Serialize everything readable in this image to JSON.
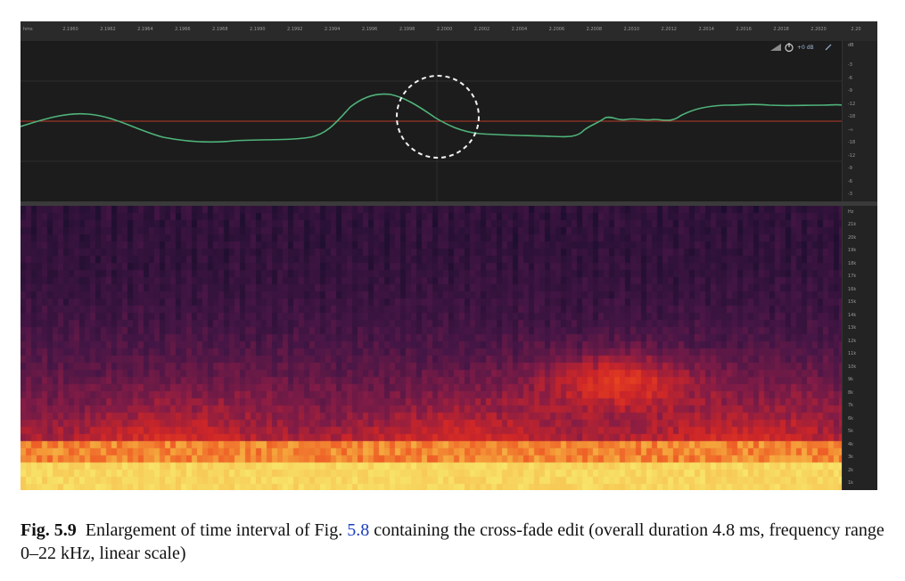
{
  "figure": {
    "ruler": {
      "unit": "hms",
      "ticks": [
        "2.1960",
        "2.1962",
        "2.1964",
        "2.1966",
        "2.1968",
        "2.1990",
        "2.1992",
        "2.1994",
        "2.1996",
        "2.1998",
        "2.2000",
        "2.2002",
        "2.2004",
        "2.2006",
        "2.2008",
        "2.2010",
        "2.2012",
        "2.2014",
        "2.2016",
        "2.2018",
        "2.2020",
        "2.20"
      ]
    },
    "controls": {
      "gain_label": "+0 dB",
      "db_label": "dB"
    },
    "db_scale": [
      "-3",
      "-6",
      "-9",
      "-12",
      "-18",
      "-∞",
      "-18",
      "-12",
      "-9",
      "-6",
      "-3"
    ],
    "hz_scale": [
      "Hz",
      "21k",
      "20k",
      "19k",
      "18k",
      "17k",
      "16k",
      "15k",
      "14k",
      "13k",
      "12k",
      "11k",
      "10k",
      "9k",
      "8k",
      "7k",
      "6k",
      "5k",
      "4k",
      "3k",
      "2k",
      "1k"
    ],
    "colors": {
      "waveform": "#4fb37a",
      "zero_line": "#b83a2a",
      "highlight_circle": "#f2f2f2",
      "spectrogram_low": "#1f0f33",
      "spectrogram_mid": "#d92a1e",
      "spectrogram_high": "#f5e85a"
    }
  },
  "caption": {
    "label": "Fig. 5.9",
    "text_before_ref": "Enlargement of time interval of Fig.",
    "ref": "5.8",
    "text_after_ref": "containing the cross-fade edit (overall duration 4.8 ms, frequency range 0–22 kHz, linear scale)"
  }
}
